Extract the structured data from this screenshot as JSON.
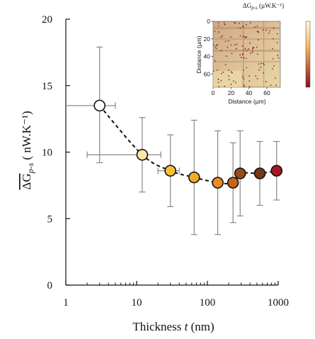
{
  "chart_data": [
    {
      "type": "scatter",
      "title": "",
      "xlabel": "Thickness t (nm)",
      "ylabel": "ΔG_p-s ( nW.K⁻¹)",
      "x_scale": "log",
      "xlim": [
        1,
        1000
      ],
      "ylim": [
        0,
        20
      ],
      "x_ticks": [
        "1",
        "10",
        "100",
        "1000"
      ],
      "y_ticks": [
        "0",
        "5",
        "10",
        "15",
        "20"
      ],
      "grid": false,
      "legend": "none",
      "trend_line": "dashed",
      "points": [
        {
          "x": 3,
          "y": 13.5,
          "y_err_low": 4.3,
          "y_err_high": 4.4,
          "x_err_low": 2.0,
          "x_err_high": 2.0,
          "color": "#ffffff"
        },
        {
          "x": 12,
          "y": 9.8,
          "y_err_low": 2.8,
          "y_err_high": 2.8,
          "x_err_low": 10,
          "x_err_high": 10,
          "color": "#fde7a8"
        },
        {
          "x": 30,
          "y": 8.6,
          "y_err_low": 2.7,
          "y_err_high": 2.7,
          "x_err_low": 10,
          "x_err_high": 10,
          "color": "#f7c136"
        },
        {
          "x": 65,
          "y": 8.1,
          "y_err_low": 4.3,
          "y_err_high": 4.3,
          "color": "#f5a928"
        },
        {
          "x": 140,
          "y": 7.7,
          "y_err_low": 3.9,
          "y_err_high": 3.9,
          "color": "#ec8a20"
        },
        {
          "x": 230,
          "y": 7.7,
          "y_err_low": 3.0,
          "y_err_high": 3.0,
          "color": "#c8641b"
        },
        {
          "x": 290,
          "y": 8.4,
          "y_err_low": 3.2,
          "y_err_high": 3.2,
          "color": "#9a4a18"
        },
        {
          "x": 550,
          "y": 8.4,
          "y_err_low": 2.4,
          "y_err_high": 2.4,
          "color": "#7a3514"
        },
        {
          "x": 950,
          "y": 8.6,
          "y_err_low": 2.2,
          "y_err_high": 2.2,
          "color": "#a31826"
        }
      ]
    },
    {
      "type": "heatmap",
      "title": "ΔG_p-s (µW.K⁻¹)",
      "xlabel": "Distance (µm)",
      "ylabel": "Distance (µm)",
      "xlim": [
        0,
        75
      ],
      "ylim": [
        75,
        0
      ],
      "x_ticks": [
        "0",
        "20",
        "40",
        "60"
      ],
      "y_ticks": [
        "0",
        "20",
        "40",
        "60"
      ]
    }
  ]
}
